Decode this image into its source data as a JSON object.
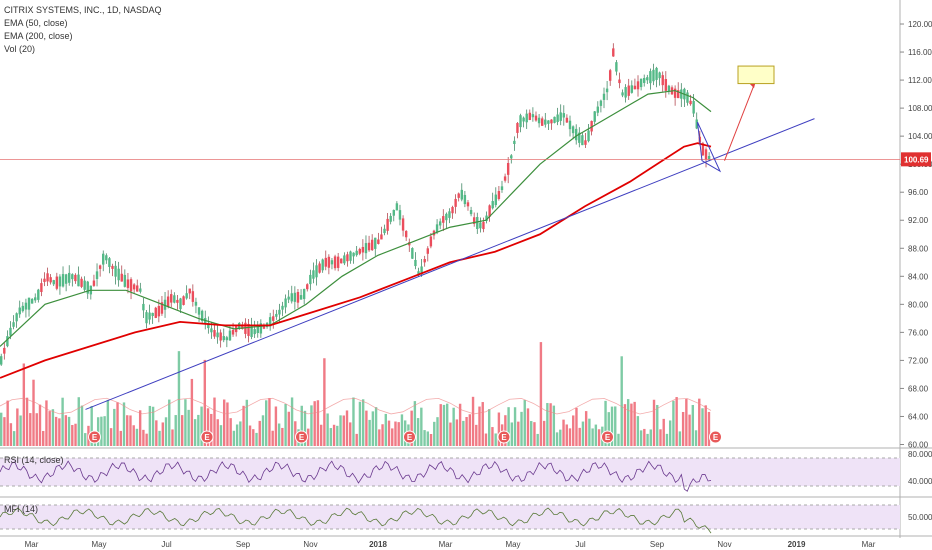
{
  "legend": {
    "symbol": "CITRIX SYSTEMS, INC., 1D, NASDAQ",
    "ema50": "EMA (50, close)",
    "ema200": "EMA (200, close)",
    "vol": "Vol (20)"
  },
  "rsi_label": "RSI (14, close)",
  "mfi_label": "MFI (14)",
  "last_price": "100.69",
  "earnings_marker": "E",
  "colors": {
    "up": "#53b987",
    "down": "#eb4d5c",
    "ema50": "#3d8f3d",
    "ema200": "#e00000",
    "trendline": "#3f3fc0",
    "hline": "#e57373",
    "target_box": "#ffffc8",
    "arrow": "#e04040",
    "osc_bg": "#efe3f7",
    "osc_line": "#6b3a8f",
    "mfi_line": "#5a7a3a"
  },
  "chart_data": {
    "type": "candlestick",
    "title": "CITRIX SYSTEMS, INC., 1D, NASDAQ",
    "y_ticks": [
      "120.00",
      "116.00",
      "112.00",
      "108.00",
      "104.00",
      "100.00",
      "96.00",
      "92.00",
      "88.00",
      "84.00",
      "80.00",
      "76.00",
      "72.00",
      "68.00",
      "64.00",
      "60.00"
    ],
    "ylim": [
      59.5,
      122
    ],
    "x_ticks": [
      "Mar",
      "May",
      "Jul",
      "Sep",
      "Nov",
      "2018",
      "Mar",
      "May",
      "Jul",
      "Sep",
      "Nov",
      "2019",
      "Mar"
    ],
    "x_tick_fractions": [
      0.035,
      0.11,
      0.185,
      0.27,
      0.345,
      0.42,
      0.495,
      0.57,
      0.645,
      0.73,
      0.805,
      0.885,
      0.965
    ],
    "earnings_fractions": [
      0.105,
      0.23,
      0.335,
      0.455,
      0.56,
      0.675,
      0.795
    ],
    "price_path": [
      [
        0.0,
        72
      ],
      [
        0.01,
        76
      ],
      [
        0.02,
        79
      ],
      [
        0.03,
        80
      ],
      [
        0.04,
        81
      ],
      [
        0.05,
        84
      ],
      [
        0.06,
        83
      ],
      [
        0.08,
        84
      ],
      [
        0.1,
        82
      ],
      [
        0.115,
        87
      ],
      [
        0.125,
        85
      ],
      [
        0.14,
        83
      ],
      [
        0.155,
        82
      ],
      [
        0.16,
        78
      ],
      [
        0.175,
        79
      ],
      [
        0.19,
        81
      ],
      [
        0.2,
        80
      ],
      [
        0.21,
        82
      ],
      [
        0.22,
        79
      ],
      [
        0.235,
        76
      ],
      [
        0.25,
        75
      ],
      [
        0.265,
        77
      ],
      [
        0.28,
        76
      ],
      [
        0.295,
        77
      ],
      [
        0.31,
        79
      ],
      [
        0.32,
        81
      ],
      [
        0.335,
        81
      ],
      [
        0.345,
        84
      ],
      [
        0.36,
        86
      ],
      [
        0.375,
        86
      ],
      [
        0.39,
        87
      ],
      [
        0.405,
        88
      ],
      [
        0.42,
        89
      ],
      [
        0.44,
        94
      ],
      [
        0.455,
        88
      ],
      [
        0.465,
        84
      ],
      [
        0.48,
        90
      ],
      [
        0.49,
        92
      ],
      [
        0.5,
        93
      ],
      [
        0.51,
        96
      ],
      [
        0.52,
        94
      ],
      [
        0.525,
        92
      ],
      [
        0.535,
        91
      ],
      [
        0.545,
        94
      ],
      [
        0.555,
        96
      ],
      [
        0.565,
        100
      ],
      [
        0.575,
        106
      ],
      [
        0.59,
        107
      ],
      [
        0.6,
        106
      ],
      [
        0.61,
        106
      ],
      [
        0.625,
        107
      ],
      [
        0.64,
        104
      ],
      [
        0.65,
        103
      ],
      [
        0.66,
        107
      ],
      [
        0.675,
        111
      ],
      [
        0.68,
        116
      ],
      [
        0.69,
        110
      ],
      [
        0.705,
        111
      ],
      [
        0.715,
        112
      ],
      [
        0.73,
        113
      ],
      [
        0.74,
        111
      ],
      [
        0.75,
        110
      ],
      [
        0.76,
        110
      ],
      [
        0.77,
        108
      ],
      [
        0.775,
        104
      ],
      [
        0.78,
        102
      ],
      [
        0.785,
        101
      ],
      [
        0.79,
        100.69
      ]
    ],
    "ema50_path": [
      [
        0.0,
        74
      ],
      [
        0.05,
        80
      ],
      [
        0.1,
        82
      ],
      [
        0.14,
        82
      ],
      [
        0.18,
        80
      ],
      [
        0.22,
        78
      ],
      [
        0.26,
        76.5
      ],
      [
        0.3,
        77
      ],
      [
        0.34,
        80
      ],
      [
        0.38,
        84
      ],
      [
        0.42,
        87
      ],
      [
        0.46,
        89
      ],
      [
        0.5,
        91
      ],
      [
        0.54,
        92
      ],
      [
        0.57,
        96
      ],
      [
        0.6,
        100
      ],
      [
        0.64,
        104
      ],
      [
        0.68,
        107
      ],
      [
        0.72,
        110
      ],
      [
        0.75,
        110.5
      ],
      [
        0.77,
        109.5
      ],
      [
        0.79,
        107.5
      ]
    ],
    "ema200_path": [
      [
        0.0,
        69.5
      ],
      [
        0.05,
        72
      ],
      [
        0.1,
        74
      ],
      [
        0.15,
        76
      ],
      [
        0.2,
        77.5
      ],
      [
        0.25,
        77
      ],
      [
        0.3,
        77
      ],
      [
        0.35,
        79
      ],
      [
        0.4,
        81
      ],
      [
        0.45,
        83.5
      ],
      [
        0.5,
        86
      ],
      [
        0.55,
        87.5
      ],
      [
        0.6,
        90
      ],
      [
        0.65,
        94
      ],
      [
        0.7,
        97.5
      ],
      [
        0.73,
        100
      ],
      [
        0.76,
        102.5
      ],
      [
        0.775,
        103
      ],
      [
        0.79,
        102.5
      ]
    ],
    "trendline": [
      [
        0.095,
        65
      ],
      [
        0.905,
        106.5
      ]
    ],
    "hline_price": 100.69,
    "target_box": {
      "x": [
        0.82,
        0.86
      ],
      "y": [
        111.5,
        114
      ]
    },
    "arrow": {
      "from": [
        0.805,
        100.5
      ],
      "to": [
        0.84,
        112
      ]
    },
    "wedge": [
      [
        0.775,
        106
      ],
      [
        0.8,
        99
      ],
      [
        0.78,
        100.5
      ]
    ]
  }
}
